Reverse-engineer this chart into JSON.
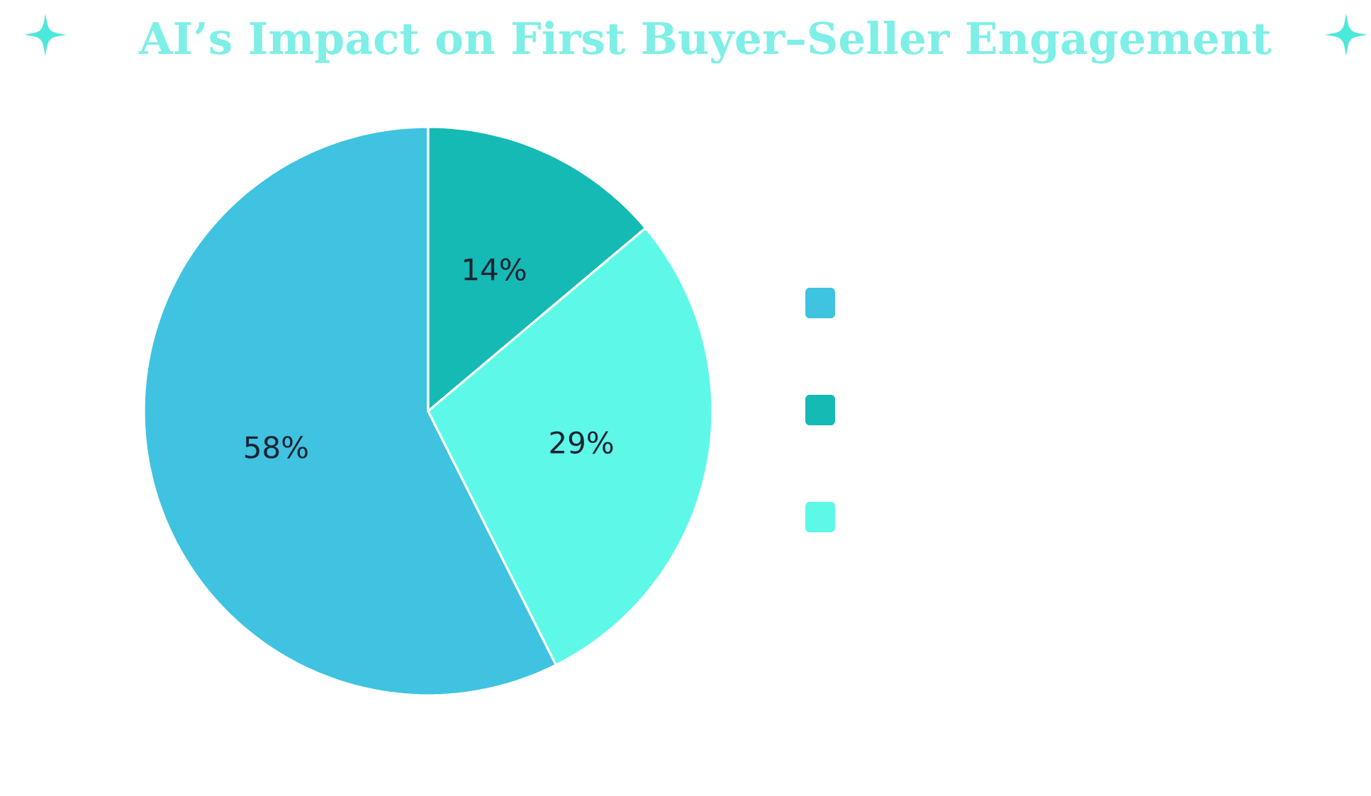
{
  "chart_data": {
    "type": "pie",
    "title": "AI’s Impact on First Buyer–Seller Engagement",
    "categories": [
      null,
      null,
      null
    ],
    "values": [
      58,
      14,
      29
    ],
    "colors": [
      "#3fc3e0",
      "#14bab3",
      "#5ef8e8"
    ],
    "value_labels": [
      "58%",
      "14%",
      "29%"
    ]
  }
}
